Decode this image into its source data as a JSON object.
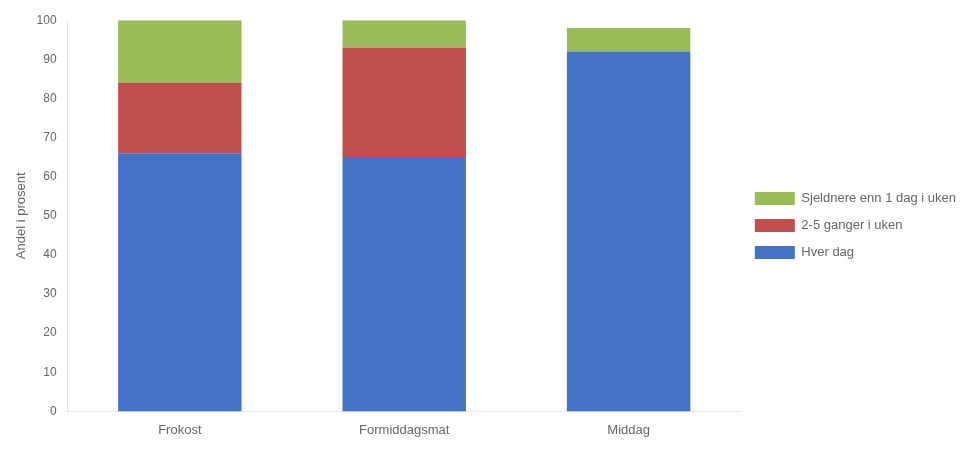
{
  "chart_data": {
    "type": "bar",
    "stacked": true,
    "categories": [
      "Frokost",
      "Formiddagsmat",
      "Middag"
    ],
    "series": [
      {
        "name": "Hver dag",
        "color": "#4472C4",
        "values": [
          66,
          65,
          92
        ]
      },
      {
        "name": "2-5 ganger i uken",
        "color": "#C0504D",
        "values": [
          18,
          28,
          0
        ]
      },
      {
        "name": "Sjeldnere enn 1 dag i uken",
        "color": "#9BBB59",
        "values": [
          16,
          7,
          6
        ]
      }
    ],
    "ylabel": "Andel i prosent",
    "ylim": [
      0,
      100
    ],
    "yticks": [
      0,
      10,
      20,
      30,
      40,
      50,
      60,
      70,
      80,
      90,
      100
    ],
    "grid": false,
    "legend": "right"
  }
}
